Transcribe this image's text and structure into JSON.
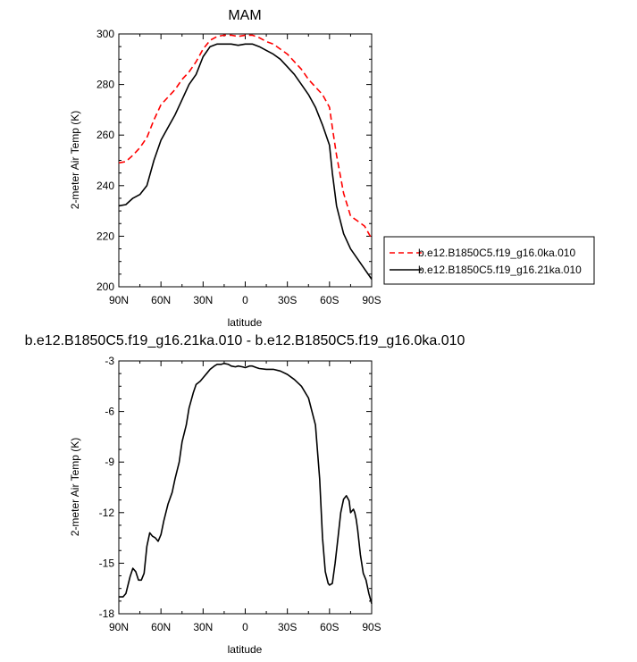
{
  "chart_data": [
    {
      "type": "line",
      "title": "MAM",
      "xlabel": "latitude",
      "ylabel": "2-meter Air Temp (K)",
      "xlim": [
        90,
        -90
      ],
      "ylim": [
        200,
        300
      ],
      "x_ticks": [
        90,
        60,
        30,
        0,
        -30,
        -60,
        -90
      ],
      "x_tick_labels": [
        "90N",
        "60N",
        "30N",
        "0",
        "30S",
        "60S",
        "90S"
      ],
      "y_ticks": [
        200,
        220,
        240,
        260,
        280,
        300
      ],
      "y_tick_labels": [
        "200",
        "220",
        "240",
        "260",
        "280",
        "300"
      ],
      "legend_position": "outside-right",
      "series": [
        {
          "name": "b.e12.B1850C5.f19_g16.0ka.010",
          "color": "#ff0000",
          "dash": "dashed",
          "x": [
            90,
            85,
            80,
            75,
            70,
            65,
            60,
            55,
            50,
            45,
            40,
            35,
            30,
            25,
            20,
            15,
            10,
            5,
            0,
            -5,
            -10,
            -15,
            -20,
            -25,
            -30,
            -35,
            -40,
            -45,
            -50,
            -55,
            -60,
            -62,
            -65,
            -70,
            -75,
            -80,
            -85,
            -90
          ],
          "y": [
            249,
            249.5,
            252,
            255,
            259,
            266,
            272,
            275,
            278,
            282,
            285,
            289,
            294,
            297.5,
            299,
            299.5,
            299.5,
            299,
            299.5,
            299.5,
            298.5,
            297,
            296,
            294,
            292,
            289,
            286,
            282,
            279,
            276,
            271,
            263,
            252,
            237,
            228,
            226,
            224,
            219
          ]
        },
        {
          "name": "b.e12.B1850C5.f19_g16.21ka.010",
          "color": "#000000",
          "dash": "solid",
          "x": [
            90,
            85,
            80,
            75,
            70,
            65,
            60,
            55,
            50,
            45,
            40,
            35,
            30,
            25,
            20,
            15,
            10,
            5,
            0,
            -5,
            -10,
            -15,
            -20,
            -25,
            -30,
            -35,
            -40,
            -45,
            -50,
            -55,
            -60,
            -62,
            -65,
            -70,
            -75,
            -80,
            -85,
            -90
          ],
          "y": [
            232,
            232.5,
            235,
            236.5,
            240,
            250,
            258,
            263,
            268,
            274,
            280,
            284,
            291,
            295,
            296,
            296,
            296,
            295.5,
            296,
            296,
            295,
            293.5,
            292,
            290,
            287,
            284,
            280,
            276,
            271,
            264,
            256,
            245,
            232,
            221,
            215,
            211,
            207,
            203
          ]
        }
      ]
    },
    {
      "type": "line",
      "title": "b.e12.B1850C5.f19_g16.21ka.010 - b.e12.B1850C5.f19_g16.0ka.010",
      "xlabel": "latitude",
      "ylabel": "2-meter Air Temp (K)",
      "xlim": [
        90,
        -90
      ],
      "ylim": [
        -18,
        -3
      ],
      "x_ticks": [
        90,
        60,
        30,
        0,
        -30,
        -60,
        -90
      ],
      "x_tick_labels": [
        "90N",
        "60N",
        "30N",
        "0",
        "30S",
        "60S",
        "90S"
      ],
      "y_ticks": [
        -3,
        -6,
        -9,
        -12,
        -15,
        -18
      ],
      "y_tick_labels": [
        "-3",
        "-6",
        "-9",
        "-12",
        "-15",
        "-18"
      ],
      "series": [
        {
          "color": "#000000",
          "dash": "solid",
          "x": [
            90,
            87,
            85,
            82,
            80,
            78,
            76,
            74,
            72,
            70,
            68,
            66,
            64,
            62,
            60,
            58,
            55,
            52,
            50,
            47,
            45,
            42,
            40,
            37,
            35,
            32,
            30,
            27,
            25,
            22,
            20,
            17,
            15,
            12,
            10,
            7,
            5,
            2,
            0,
            -3,
            -5,
            -8,
            -10,
            -15,
            -20,
            -25,
            -30,
            -35,
            -40,
            -45,
            -50,
            -53,
            -55,
            -57,
            -59,
            -60,
            -62,
            -64,
            -66,
            -68,
            -70,
            -72,
            -74,
            -75,
            -76,
            -77,
            -78,
            -79,
            -80,
            -82,
            -84,
            -86,
            -88,
            -90
          ],
          "y": [
            -17,
            -17,
            -16.8,
            -15.8,
            -15.3,
            -15.5,
            -16,
            -16,
            -15.6,
            -14,
            -13.2,
            -13.4,
            -13.5,
            -13.7,
            -13.3,
            -12.5,
            -11.5,
            -10.8,
            -10,
            -9,
            -7.8,
            -6.8,
            -5.8,
            -4.9,
            -4.4,
            -4.2,
            -4,
            -3.7,
            -3.5,
            -3.3,
            -3.2,
            -3.2,
            -3.15,
            -3.2,
            -3.3,
            -3.35,
            -3.3,
            -3.35,
            -3.4,
            -3.3,
            -3.3,
            -3.4,
            -3.45,
            -3.5,
            -3.5,
            -3.6,
            -3.8,
            -4.1,
            -4.5,
            -5.2,
            -6.8,
            -10,
            -13.5,
            -15.5,
            -16.2,
            -16.3,
            -16.2,
            -15,
            -13.5,
            -12,
            -11.2,
            -11,
            -11.3,
            -12,
            -11.9,
            -11.8,
            -12,
            -12.4,
            -13,
            -14.5,
            -15.6,
            -16,
            -16.8,
            -17.4
          ]
        }
      ]
    }
  ]
}
